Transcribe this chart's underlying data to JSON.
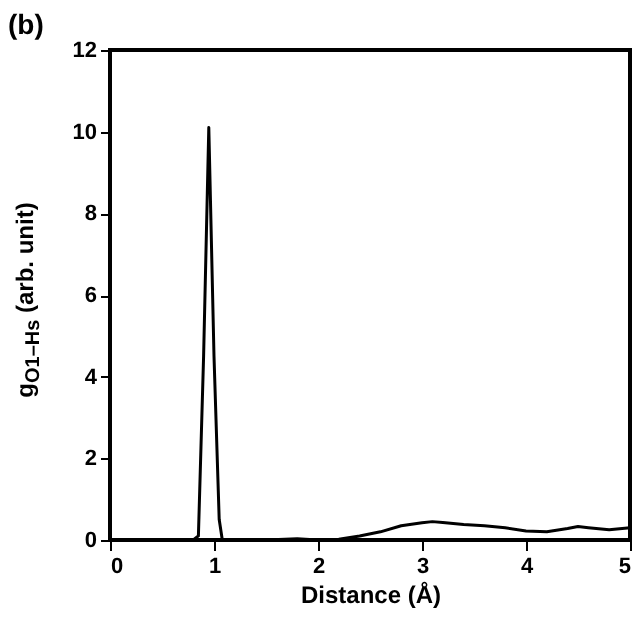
{
  "chart_data": {
    "type": "line",
    "title": "(b)",
    "xlabel": "Distance (Å)",
    "ylabel": "g$_{O1–Hs}$ (arb. unit)",
    "x": [
      0,
      0.5,
      0.8,
      0.85,
      0.9,
      0.95,
      1.0,
      1.05,
      1.08,
      1.2,
      1.5,
      1.8,
      2.0,
      2.2,
      2.4,
      2.6,
      2.8,
      3.0,
      3.1,
      3.2,
      3.4,
      3.6,
      3.8,
      4.0,
      4.2,
      4.4,
      4.5,
      4.6,
      4.8,
      5.0
    ],
    "series": [
      {
        "color": "#000000",
        "values": [
          0,
          0,
          0,
          0.1,
          4.5,
          10.1,
          4.5,
          0.5,
          0,
          0,
          0,
          0.03,
          0,
          0.02,
          0.1,
          0.2,
          0.35,
          0.42,
          0.45,
          0.43,
          0.38,
          0.35,
          0.3,
          0.22,
          0.2,
          0.28,
          0.33,
          0.3,
          0.25,
          0.3
        ]
      }
    ],
    "xlim": [
      0,
      5
    ],
    "xticks": [
      0,
      1,
      2,
      3,
      4,
      5
    ],
    "ylim": [
      0,
      12
    ],
    "yticks": [
      0,
      2,
      4,
      6,
      8,
      10,
      12
    ],
    "grid": false,
    "marker": "none",
    "line_style": "solid"
  }
}
